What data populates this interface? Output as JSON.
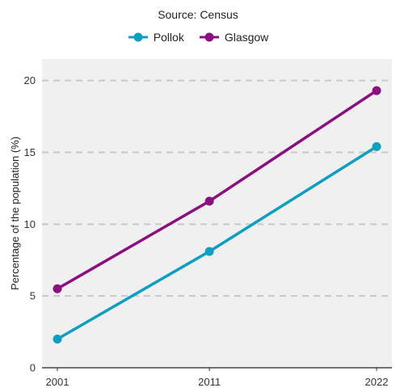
{
  "chart_data": {
    "type": "line",
    "subtitle": "Source: Census",
    "title": "",
    "xlabel": "",
    "ylabel": "Percentage of the population (%)",
    "x": [
      "2001",
      "2011",
      "2022"
    ],
    "x_numeric": [
      2001,
      2011,
      2022
    ],
    "ylim": [
      0,
      21.5
    ],
    "yticks": [
      0,
      5,
      10,
      15,
      20
    ],
    "grid": "horizontal dashed",
    "legend_position": "top",
    "series": [
      {
        "name": "Pollok",
        "color": "#0e9ec0",
        "values": [
          2.0,
          8.1,
          15.4
        ]
      },
      {
        "name": "Glasgow",
        "color": "#8b0f7f",
        "values": [
          5.5,
          11.6,
          19.3
        ]
      }
    ]
  }
}
